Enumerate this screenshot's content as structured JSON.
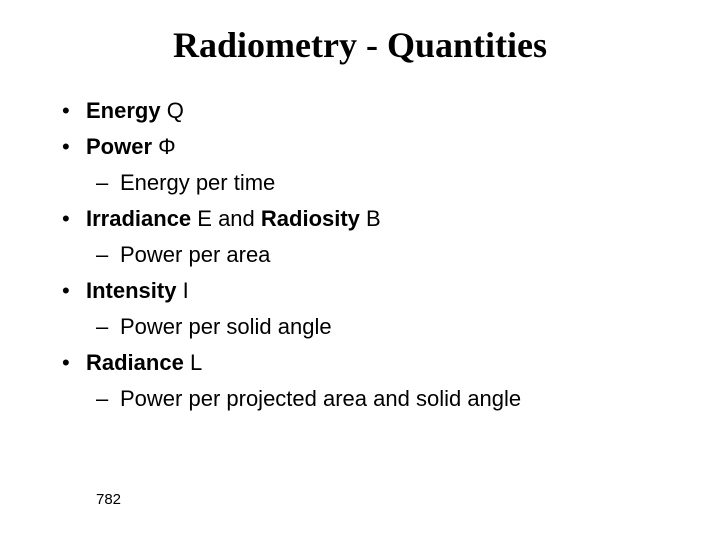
{
  "title": "Radiometry - Quantities",
  "title_fontsize": 36,
  "body_fontsize": 22,
  "text_color": "#000000",
  "bg_color": "#ffffff",
  "items": {
    "energy": {
      "label_b": "Energy",
      "sym": " Q"
    },
    "power": {
      "label_b": "Power",
      "sym": " Φ",
      "sub": "Energy per time"
    },
    "irradiance": {
      "label_b1": "Irradiance",
      "mid": " E and ",
      "label_b2": "Radiosity",
      "sym": " B",
      "sub": "Power per area"
    },
    "intensity": {
      "label_b": "Intensity",
      "sym": " I",
      "sub": "Power per solid angle"
    },
    "radiance": {
      "label_b": "Radiance",
      "sym": " L",
      "sub": "Power per projected area and solid angle"
    }
  },
  "pagenum": "782",
  "pagenum_fontsize": 15
}
